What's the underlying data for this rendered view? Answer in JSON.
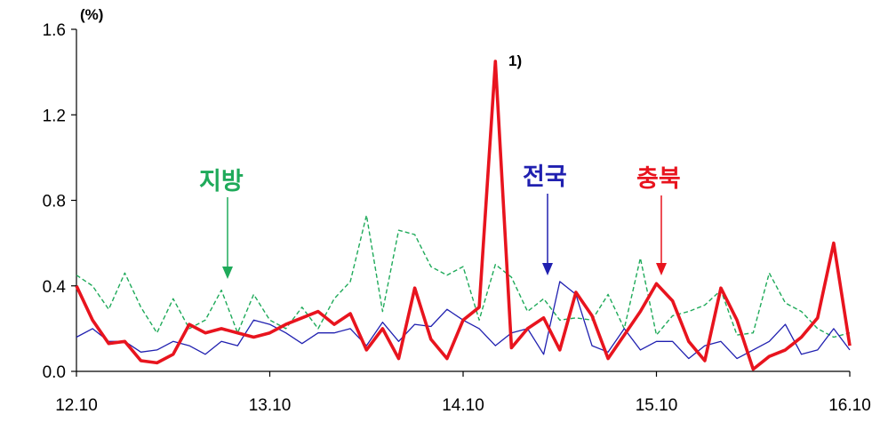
{
  "chart_data": {
    "type": "line",
    "unit": "(%)",
    "x_tick_labels": [
      "12.10",
      "13.10",
      "14.10",
      "15.10",
      "16.10"
    ],
    "y_ticks": [
      0.0,
      0.4,
      0.8,
      1.2,
      1.6
    ],
    "y_tick_labels": [
      "0.0",
      "0.4",
      "0.8",
      "1.2",
      "1.6"
    ],
    "ylim": [
      0,
      1.6
    ],
    "x_count": 49,
    "grid": false,
    "series": [
      {
        "name": "지방",
        "color": "#1faa5a",
        "style": "dashed",
        "values": [
          0.45,
          0.4,
          0.29,
          0.46,
          0.3,
          0.18,
          0.34,
          0.2,
          0.24,
          0.38,
          0.18,
          0.36,
          0.24,
          0.2,
          0.3,
          0.2,
          0.34,
          0.42,
          0.73,
          0.28,
          0.66,
          0.64,
          0.49,
          0.45,
          0.49,
          0.24,
          0.5,
          0.44,
          0.28,
          0.34,
          0.24,
          0.25,
          0.24,
          0.36,
          0.2,
          0.53,
          0.17,
          0.26,
          0.28,
          0.31,
          0.38,
          0.17,
          0.18,
          0.46,
          0.32,
          0.28,
          0.2,
          0.16,
          0.18
        ]
      },
      {
        "name": "전국",
        "color": "#2020b0",
        "style": "solid-thin",
        "values": [
          0.16,
          0.2,
          0.14,
          0.14,
          0.09,
          0.1,
          0.14,
          0.12,
          0.08,
          0.14,
          0.12,
          0.24,
          0.22,
          0.18,
          0.13,
          0.18,
          0.18,
          0.2,
          0.12,
          0.23,
          0.14,
          0.22,
          0.21,
          0.29,
          0.24,
          0.2,
          0.12,
          0.18,
          0.2,
          0.08,
          0.42,
          0.36,
          0.12,
          0.09,
          0.2,
          0.1,
          0.14,
          0.14,
          0.06,
          0.12,
          0.14,
          0.06,
          0.1,
          0.14,
          0.22,
          0.08,
          0.1,
          0.2,
          0.1
        ]
      },
      {
        "name": "충북",
        "color": "#e8141e",
        "style": "solid-thick",
        "values": [
          0.4,
          0.24,
          0.13,
          0.14,
          0.05,
          0.04,
          0.08,
          0.22,
          0.18,
          0.2,
          0.18,
          0.16,
          0.18,
          0.22,
          0.25,
          0.28,
          0.22,
          0.27,
          0.1,
          0.2,
          0.06,
          0.39,
          0.15,
          0.06,
          0.24,
          0.3,
          1.45,
          0.11,
          0.2,
          0.25,
          0.1,
          0.37,
          0.26,
          0.06,
          0.17,
          0.28,
          0.41,
          0.33,
          0.14,
          0.05,
          0.39,
          0.24,
          0.01,
          0.07,
          0.1,
          0.16,
          0.25,
          0.6,
          0.12
        ]
      }
    ],
    "annotations": [
      {
        "text": "지방",
        "color": "#1faa5a"
      },
      {
        "text": "전국",
        "color": "#2020b0"
      },
      {
        "text": "충북",
        "color": "#e8141e"
      },
      {
        "text": "1)",
        "color": "#000000"
      }
    ]
  }
}
